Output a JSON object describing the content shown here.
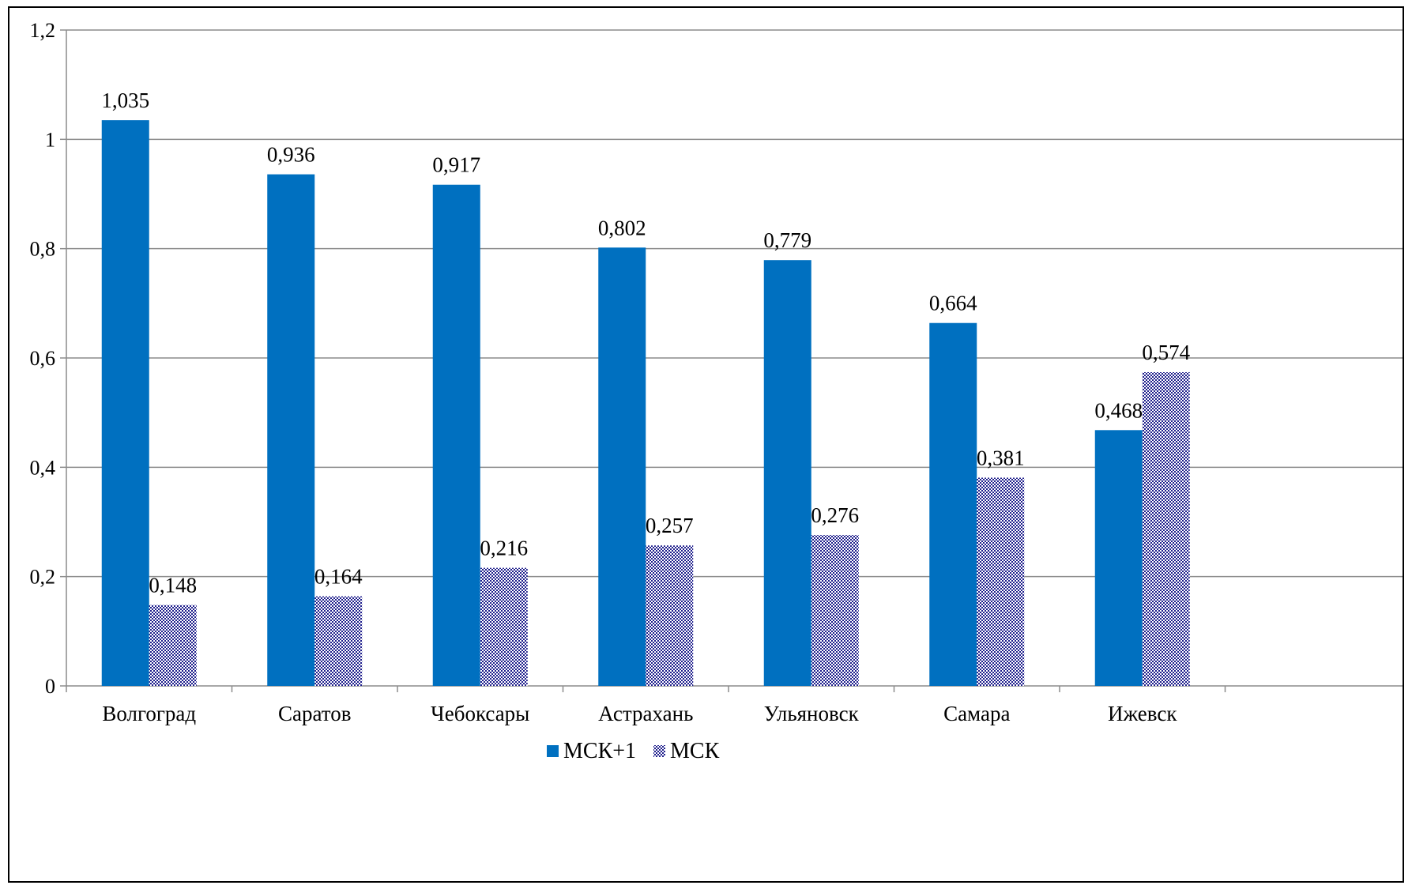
{
  "chart_data": {
    "type": "bar",
    "categories": [
      "Волгоград",
      "Саратов",
      "Чебоксары",
      "Астрахань",
      "Ульяновск",
      "Самара",
      "Ижевск"
    ],
    "series": [
      {
        "name": "МСК+1",
        "values": [
          1.035,
          0.936,
          0.917,
          0.802,
          0.779,
          0.664,
          0.468
        ],
        "labels": [
          "1,035",
          "0,936",
          "0,917",
          "0,802",
          "0,779",
          "0,664",
          "0,468"
        ],
        "color": "#0070C0",
        "fill": "solid"
      },
      {
        "name": "МСК",
        "values": [
          0.148,
          0.164,
          0.216,
          0.257,
          0.276,
          0.381,
          0.574
        ],
        "labels": [
          "0,148",
          "0,164",
          "0,216",
          "0,257",
          "0,276",
          "0,381",
          "0,574"
        ],
        "color": "#1F1F8C",
        "fill": "checkered"
      }
    ],
    "yticks": [
      {
        "value": 0,
        "label": "0"
      },
      {
        "value": 0.2,
        "label": "0,2"
      },
      {
        "value": 0.4,
        "label": "0,4"
      },
      {
        "value": 0.6,
        "label": "0,6"
      },
      {
        "value": 0.8,
        "label": "0,8"
      },
      {
        "value": 1,
        "label": "1"
      },
      {
        "value": 1.2,
        "label": "1,2"
      }
    ],
    "ylim": [
      0,
      1.2
    ],
    "grid": true,
    "legend_position": "bottom",
    "title": "",
    "xlabel": "",
    "ylabel": ""
  }
}
